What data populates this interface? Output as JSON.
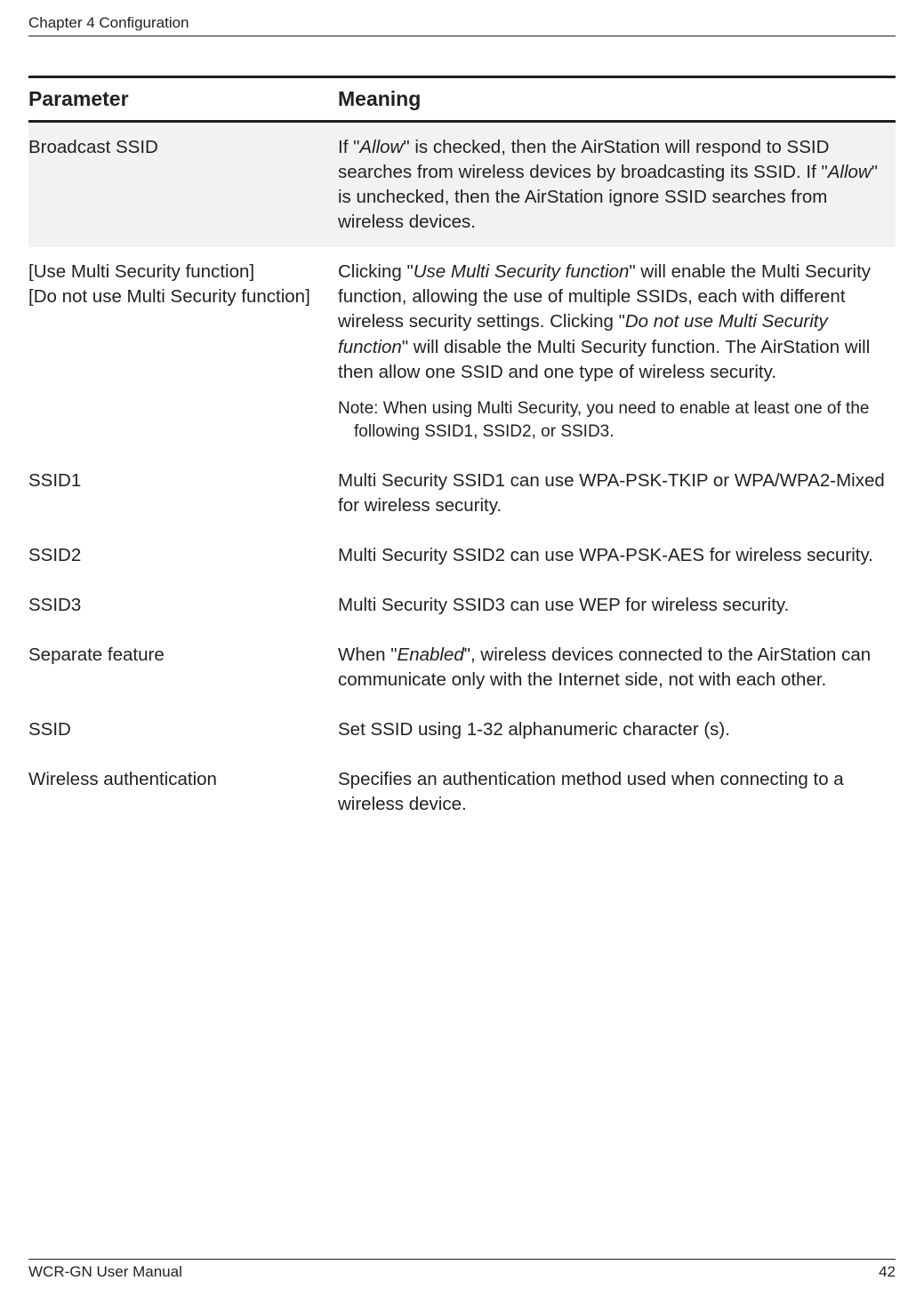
{
  "header": {
    "chapter": "Chapter 4  Configuration"
  },
  "table": {
    "columns": {
      "param": "Parameter",
      "meaning": "Meaning"
    },
    "rows": [
      {
        "shaded": true,
        "param": "Broadcast SSID",
        "meaning_pre1": "If \"",
        "italic1": "Allow",
        "meaning_mid1": "\" is checked, then the AirStation will respond to SSID searches from wireless devices by broadcasting its SSID. If \"",
        "italic2": "Allow",
        "meaning_post1": "\" is unchecked, then the AirStation ignore SSID searches from wireless devices."
      },
      {
        "shaded": false,
        "param_line1": "[Use Multi Security function]",
        "param_line2": "[Do not use Multi Security function]",
        "meaning_pre1": "Clicking \"",
        "italic1": "Use Multi Security function",
        "meaning_mid1": "\" will enable the Multi Security function, allowing the use of multiple SSIDs, each with different wireless security settings. Clicking \"",
        "italic2": "Do not use Multi Security function",
        "meaning_post1": "\" will disable the Multi Security function. The AirStation will then allow one SSID and one type of wireless security.",
        "note_line1": "Note:  When using Multi Security, you need to enable at least one of the",
        "note_line2": "following SSID1, SSID2, or SSID3."
      },
      {
        "shaded": false,
        "param": "SSID1",
        "meaning": "Multi Security SSID1 can use WPA-PSK-TKIP or WPA/WPA2-Mixed for wireless security."
      },
      {
        "shaded": false,
        "param": "SSID2",
        "meaning": "Multi Security SSID2 can use WPA-PSK-AES for wireless security."
      },
      {
        "shaded": false,
        "param": "SSID3",
        "meaning": "Multi Security SSID3 can use WEP for wireless security."
      },
      {
        "shaded": false,
        "param": "Separate feature",
        "meaning_pre1": "When \"",
        "italic1": "Enabled",
        "meaning_post1": "\", wireless devices connected to the AirStation can communicate only with the Internet side, not with each other."
      },
      {
        "shaded": false,
        "param": "SSID",
        "meaning": "Set SSID using 1-32 alphanumeric character (s)."
      },
      {
        "shaded": false,
        "param": "Wireless authentication",
        "meaning": "Specifies an authentication method used when connecting to a wireless device."
      }
    ]
  },
  "footer": {
    "manual": "WCR-GN User Manual",
    "page": "42"
  }
}
